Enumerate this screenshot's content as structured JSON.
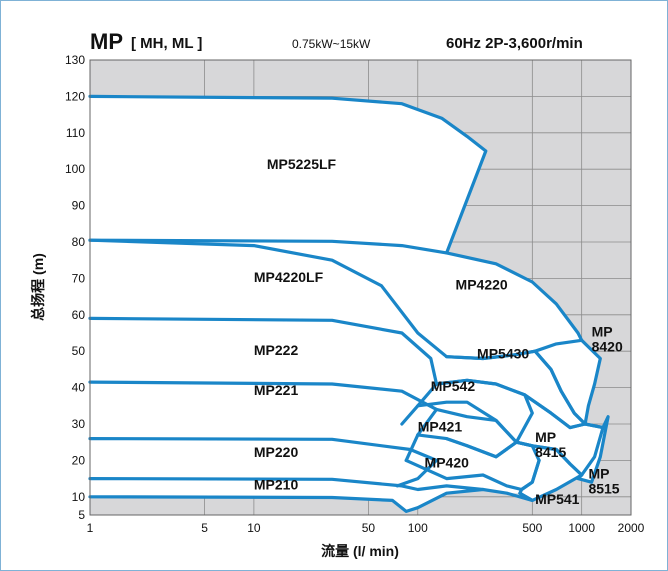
{
  "header": {
    "series_main": "MP",
    "series_sub": "[ MH, ML ]",
    "power_range": "0.75kW~15kW",
    "spec": "60Hz 2P-3,600r/min"
  },
  "chart_data": {
    "type": "line",
    "xlabel": "流量 (l/ min)",
    "ylabel": "总扬程 (m)",
    "x_scale": "log",
    "xlim": [
      1,
      2000
    ],
    "ylim": [
      5,
      130
    ],
    "x_ticks": [
      1,
      5,
      10,
      50,
      100,
      500,
      1000,
      2000
    ],
    "y_ticks": [
      5,
      10,
      20,
      30,
      40,
      50,
      60,
      70,
      80,
      90,
      100,
      110,
      120,
      130
    ],
    "grid": true,
    "legend": "none",
    "colors": {
      "curve": "#1a86c8",
      "background": "#d7d7d9",
      "grid": "#8c8c8c"
    },
    "regions": [
      {
        "label": "MP5225LF",
        "label_at": [
          12,
          100
        ],
        "points": [
          [
            1,
            120
          ],
          [
            30,
            119.5
          ],
          [
            80,
            118
          ],
          [
            140,
            114
          ],
          [
            200,
            109
          ],
          [
            260,
            105
          ],
          [
            150,
            77
          ],
          [
            80,
            79
          ],
          [
            30,
            80.2
          ],
          [
            1,
            80.5
          ]
        ]
      },
      {
        "label": "MP4220",
        "label_at": [
          170,
          67
        ],
        "points": [
          [
            150,
            77
          ],
          [
            300,
            74
          ],
          [
            500,
            69
          ],
          [
            700,
            63
          ],
          [
            950,
            55
          ],
          [
            1000,
            53
          ],
          [
            700,
            52
          ],
          [
            520,
            50
          ],
          [
            390,
            49
          ],
          [
            250,
            48
          ],
          [
            150,
            48.5
          ],
          [
            100,
            55
          ],
          [
            60,
            68
          ],
          [
            30,
            75
          ],
          [
            10,
            79
          ],
          [
            1,
            80.5
          ]
        ]
      },
      {
        "label": "MP4220LF",
        "label_at": [
          10,
          69
        ]
      },
      {
        "label": "MP8420",
        "label_at": [
          1150,
          54
        ],
        "points": [
          [
            1000,
            53
          ],
          [
            1300,
            48
          ],
          [
            1200,
            41
          ],
          [
            1100,
            35
          ],
          [
            1050,
            30
          ],
          [
            900,
            33
          ],
          [
            750,
            39
          ],
          [
            650,
            45
          ],
          [
            520,
            50
          ]
        ]
      },
      {
        "label": "MP5430",
        "label_at": [
          230,
          48
        ],
        "points": [
          [
            150,
            48.5
          ],
          [
            250,
            48
          ],
          [
            390,
            49
          ],
          [
            520,
            50
          ],
          [
            650,
            45
          ],
          [
            750,
            39
          ],
          [
            900,
            33
          ],
          [
            1050,
            30
          ],
          [
            850,
            29
          ],
          [
            650,
            33
          ],
          [
            450,
            38
          ],
          [
            300,
            41
          ],
          [
            200,
            42
          ],
          [
            130,
            41
          ]
        ]
      },
      {
        "label": "MP222",
        "label_at": [
          10,
          49
        ],
        "points": [
          [
            1,
            59
          ],
          [
            30,
            58.5
          ],
          [
            80,
            55
          ],
          [
            120,
            48
          ],
          [
            130,
            41
          ],
          [
            100,
            35
          ],
          [
            80,
            30
          ]
        ]
      },
      {
        "label": "MP542",
        "label_at": [
          120,
          39
        ],
        "points": [
          [
            130,
            41
          ],
          [
            200,
            42
          ],
          [
            300,
            41
          ],
          [
            450,
            38
          ],
          [
            500,
            33
          ],
          [
            400,
            25
          ],
          [
            300,
            31
          ],
          [
            200,
            36
          ],
          [
            150,
            36
          ],
          [
            100,
            35
          ]
        ]
      },
      {
        "label": "MP8415",
        "label_at": [
          520,
          25
        ],
        "points": [
          [
            450,
            38
          ],
          [
            650,
            33
          ],
          [
            850,
            29
          ],
          [
            1050,
            30
          ],
          [
            1350,
            29
          ],
          [
            1200,
            21
          ],
          [
            1000,
            16
          ],
          [
            850,
            19
          ],
          [
            700,
            23
          ],
          [
            500,
            24
          ],
          [
            400,
            25
          ]
        ]
      },
      {
        "label": "MP8515",
        "label_at": [
          1100,
          15
        ],
        "points": [
          [
            1050,
            30
          ],
          [
            1350,
            29
          ],
          [
            1450,
            32
          ],
          [
            1300,
            21
          ],
          [
            1150,
            14
          ],
          [
            950,
            15
          ],
          [
            1000,
            16
          ]
        ]
      },
      {
        "label": "MP221",
        "label_at": [
          10,
          38
        ],
        "points": [
          [
            1,
            41.5
          ],
          [
            30,
            41
          ],
          [
            80,
            39
          ],
          [
            130,
            34
          ],
          [
            100,
            27
          ],
          [
            85,
            20
          ]
        ]
      },
      {
        "label": "MP421",
        "label_at": [
          100,
          28
        ],
        "points": [
          [
            130,
            34
          ],
          [
            200,
            32
          ],
          [
            300,
            31
          ],
          [
            400,
            25
          ],
          [
            300,
            21
          ],
          [
            200,
            24
          ],
          [
            150,
            26
          ],
          [
            100,
            27
          ]
        ]
      },
      {
        "label": "MP420",
        "label_at": [
          110,
          18
        ],
        "points": [
          [
            150,
            26
          ],
          [
            200,
            24
          ],
          [
            300,
            21
          ],
          [
            400,
            25
          ],
          [
            500,
            24
          ],
          [
            550,
            20
          ],
          [
            500,
            14
          ],
          [
            430,
            12
          ],
          [
            350,
            13
          ],
          [
            250,
            16
          ],
          [
            150,
            15
          ],
          [
            85,
            20
          ]
        ]
      },
      {
        "label": "MP541",
        "label_at": [
          520,
          8
        ],
        "points": [
          [
            400,
            25
          ],
          [
            500,
            24
          ],
          [
            700,
            23
          ],
          [
            850,
            19
          ],
          [
            1000,
            16
          ],
          [
            700,
            12
          ],
          [
            500,
            9
          ],
          [
            420,
            11
          ],
          [
            430,
            12
          ],
          [
            500,
            14
          ],
          [
            550,
            20
          ]
        ]
      },
      {
        "label": "MP220",
        "label_at": [
          10,
          21
        ],
        "points": [
          [
            1,
            26
          ],
          [
            30,
            25.8
          ],
          [
            90,
            23
          ],
          [
            130,
            20
          ],
          [
            100,
            15
          ],
          [
            75,
            13
          ]
        ]
      },
      {
        "label": "MP210",
        "label_at": [
          10,
          12
        ],
        "points": [
          [
            1,
            15
          ],
          [
            30,
            14.8
          ],
          [
            80,
            13
          ],
          [
            100,
            12
          ],
          [
            150,
            13
          ],
          [
            250,
            12
          ],
          [
            350,
            11
          ],
          [
            500,
            9
          ],
          [
            420,
            11
          ]
        ]
      },
      {
        "label": "",
        "label_at": null,
        "points": [
          [
            1,
            10
          ],
          [
            30,
            9.8
          ],
          [
            70,
            9
          ],
          [
            85,
            6
          ],
          [
            100,
            7
          ],
          [
            150,
            11
          ],
          [
            250,
            12
          ]
        ]
      }
    ]
  }
}
